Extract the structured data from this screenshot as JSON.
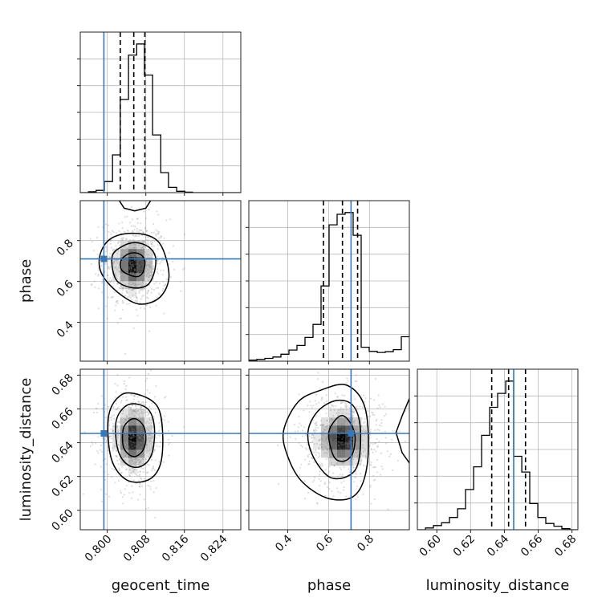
{
  "chart_data": {
    "type": "corner",
    "parameters": [
      {
        "name": "geocent_time",
        "label": "geocent_time",
        "range": [
          0.7944,
          0.8277
        ],
        "ticks": [
          0.8,
          0.808,
          0.816,
          0.824
        ],
        "tick_labels": [
          "0.800",
          "0.808",
          "0.816",
          "0.824"
        ],
        "truth": 0.7993,
        "quantiles": [
          0.8027,
          0.8055,
          0.8078
        ],
        "hist": {
          "edges": [
            0.7944,
            0.7961,
            0.7977,
            0.7994,
            0.8011,
            0.8027,
            0.8044,
            0.8061,
            0.8077,
            0.8094,
            0.8111,
            0.8127,
            0.8144,
            0.8161,
            0.8177,
            0.8194,
            0.8211,
            0.8227,
            0.8244,
            0.8261,
            0.8277
          ],
          "counts": [
            0,
            2,
            5,
            25,
            85,
            210,
            310,
            335,
            265,
            130,
            45,
            12,
            3,
            1,
            0,
            0,
            0,
            0,
            0,
            0
          ]
        }
      },
      {
        "name": "phase",
        "label": "phase",
        "range": [
          0.21,
          0.995
        ],
        "ticks": [
          0.4,
          0.6,
          0.8
        ],
        "tick_labels": [
          "0.4",
          "0.6",
          "0.8"
        ],
        "truth": 0.71,
        "quantiles": [
          0.575,
          0.668,
          0.742
        ],
        "hist": {
          "edges": [
            0.21,
            0.2493,
            0.2885,
            0.3278,
            0.367,
            0.4063,
            0.4455,
            0.4848,
            0.524,
            0.5633,
            0.6025,
            0.6418,
            0.681,
            0.7203,
            0.7595,
            0.7988,
            0.838,
            0.8773,
            0.9165,
            0.9558,
            0.995
          ],
          "counts": [
            3,
            5,
            8,
            12,
            20,
            32,
            45,
            68,
            105,
            215,
            390,
            420,
            425,
            360,
            40,
            28,
            25,
            27,
            33,
            70
          ]
        }
      },
      {
        "name": "luminosity_distance",
        "label": "luminosity_distance",
        "range": [
          0.5885,
          0.6835
        ],
        "ticks": [
          0.6,
          0.62,
          0.64,
          0.66,
          0.68
        ],
        "tick_labels": [
          "0.60",
          "0.62",
          "0.64",
          "0.66",
          "0.68"
        ],
        "truth": 0.6455,
        "quantiles": [
          0.6325,
          0.6425,
          0.6525
        ],
        "hist": {
          "edges": [
            0.5885,
            0.5933,
            0.598,
            0.6028,
            0.6075,
            0.6123,
            0.617,
            0.6218,
            0.6265,
            0.6313,
            0.636,
            0.6408,
            0.6455,
            0.6503,
            0.655,
            0.6598,
            0.6645,
            0.6693,
            0.674,
            0.6788,
            0.6835
          ],
          "counts": [
            0,
            5,
            12,
            20,
            35,
            60,
            115,
            180,
            270,
            350,
            390,
            425,
            210,
            165,
            75,
            35,
            18,
            10,
            3,
            0
          ]
        }
      }
    ],
    "pairs": [
      {
        "x": 0,
        "y": 1,
        "center": [
          0.8055,
          0.68
        ],
        "spread": [
          0.0028,
          0.09
        ],
        "contours": [
          [
            [
              0.8028,
              0.7
            ],
            [
              0.804,
              0.73
            ],
            [
              0.8055,
              0.74
            ],
            [
              0.807,
              0.73
            ],
            [
              0.8078,
              0.7
            ],
            [
              0.8075,
              0.65
            ],
            [
              0.8065,
              0.625
            ],
            [
              0.8048,
              0.63
            ],
            [
              0.803,
              0.655
            ]
          ],
          [
            [
              0.801,
              0.72
            ],
            [
              0.803,
              0.77
            ],
            [
              0.8058,
              0.79
            ],
            [
              0.8085,
              0.77
            ],
            [
              0.81,
              0.72
            ],
            [
              0.8097,
              0.64
            ],
            [
              0.8082,
              0.58
            ],
            [
              0.805,
              0.57
            ],
            [
              0.8018,
              0.61
            ]
          ],
          [
            [
              0.7985,
              0.73
            ],
            [
              0.8005,
              0.805
            ],
            [
              0.8045,
              0.835
            ],
            [
              0.809,
              0.82
            ],
            [
              0.8115,
              0.76
            ],
            [
              0.8128,
              0.62
            ],
            [
              0.8108,
              0.52
            ],
            [
              0.8065,
              0.49
            ],
            [
              0.802,
              0.55
            ],
            [
              0.7988,
              0.64
            ]
          ],
          [
            [
              0.8025,
              0.995
            ],
            [
              0.8035,
              0.958
            ],
            [
              0.8057,
              0.945
            ],
            [
              0.808,
              0.958
            ],
            [
              0.809,
              0.995
            ]
          ]
        ]
      },
      {
        "x": 0,
        "y": 2,
        "center": [
          0.8055,
          0.6425
        ],
        "spread": [
          0.0026,
          0.0125
        ],
        "contours": [
          [
            [
              0.8033,
              0.648
            ],
            [
              0.8045,
              0.653
            ],
            [
              0.806,
              0.654
            ],
            [
              0.8075,
              0.65
            ],
            [
              0.808,
              0.643
            ],
            [
              0.8075,
              0.636
            ],
            [
              0.806,
              0.632
            ],
            [
              0.8045,
              0.633
            ],
            [
              0.8033,
              0.638
            ]
          ],
          [
            [
              0.8018,
              0.652
            ],
            [
              0.8035,
              0.661
            ],
            [
              0.806,
              0.663
            ],
            [
              0.8087,
              0.659
            ],
            [
              0.8098,
              0.648
            ],
            [
              0.8092,
              0.633
            ],
            [
              0.807,
              0.626
            ],
            [
              0.8042,
              0.627
            ],
            [
              0.8022,
              0.636
            ]
          ],
          [
            [
              0.8003,
              0.656
            ],
            [
              0.803,
              0.6685
            ],
            [
              0.807,
              0.668
            ],
            [
              0.8105,
              0.661
            ],
            [
              0.8115,
              0.645
            ],
            [
              0.811,
              0.627
            ],
            [
              0.8085,
              0.618
            ],
            [
              0.804,
              0.618
            ],
            [
              0.8008,
              0.631
            ]
          ]
        ]
      },
      {
        "x": 1,
        "y": 2,
        "center": [
          0.67,
          0.642
        ],
        "spread": [
          0.085,
          0.0115
        ],
        "contours": [
          [
            [
              0.6,
              0.645
            ],
            [
              0.63,
              0.653
            ],
            [
              0.67,
              0.656
            ],
            [
              0.71,
              0.651
            ],
            [
              0.73,
              0.643
            ],
            [
              0.715,
              0.633
            ],
            [
              0.67,
              0.629
            ],
            [
              0.625,
              0.632
            ]
          ],
          [
            [
              0.5,
              0.647
            ],
            [
              0.55,
              0.659
            ],
            [
              0.64,
              0.665
            ],
            [
              0.72,
              0.662
            ],
            [
              0.755,
              0.649
            ],
            [
              0.745,
              0.628
            ],
            [
              0.69,
              0.62
            ],
            [
              0.6,
              0.62
            ],
            [
              0.52,
              0.633
            ]
          ],
          [
            [
              0.38,
              0.647
            ],
            [
              0.45,
              0.664
            ],
            [
              0.56,
              0.671
            ],
            [
              0.69,
              0.674
            ],
            [
              0.78,
              0.66
            ],
            [
              0.79,
              0.628
            ],
            [
              0.73,
              0.609
            ],
            [
              0.6,
              0.607
            ],
            [
              0.47,
              0.617
            ],
            [
              0.4,
              0.632
            ]
          ],
          [
            [
              0.995,
              0.628
            ],
            [
              0.96,
              0.634
            ],
            [
              0.93,
              0.646
            ],
            [
              0.96,
              0.656
            ],
            [
              0.995,
              0.666
            ]
          ]
        ]
      }
    ]
  }
}
